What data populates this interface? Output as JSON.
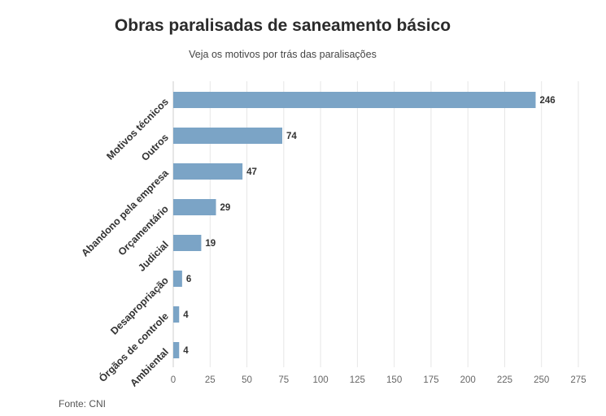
{
  "chart_data": {
    "type": "bar",
    "orientation": "horizontal",
    "title": "Obras paralisadas de saneamento básico",
    "subtitle": "Veja os motivos por trás das paralisações",
    "source": "Fonte: CNI",
    "categories": [
      "Motivos técnicos",
      "Outros",
      "Abandono pela empresa",
      "Orçamentário",
      "Judicial",
      "Desapropriação",
      "Órgãos de controle",
      "Ambiental"
    ],
    "values": [
      246,
      74,
      47,
      29,
      19,
      6,
      4,
      4
    ],
    "xlim": [
      0,
      275
    ],
    "xticks": [
      0,
      25,
      50,
      75,
      100,
      125,
      150,
      175,
      200,
      225,
      250,
      275
    ],
    "grid": true,
    "bar_color": "#7ba4c6"
  }
}
